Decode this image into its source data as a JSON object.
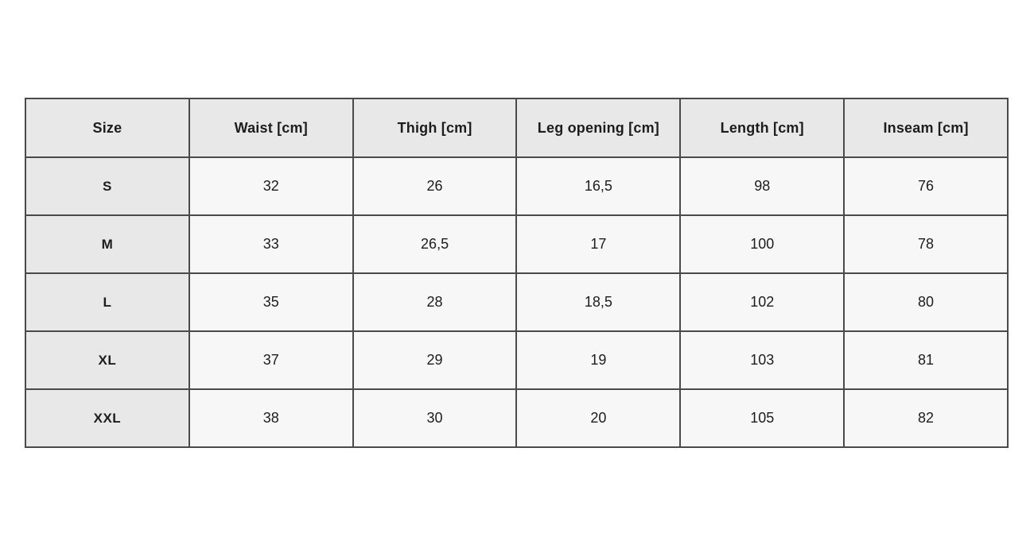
{
  "colors": {
    "page_bg": "#ffffff",
    "header_bg": "#e8e8e8",
    "cell_bg": "#f7f7f7",
    "border_inner": "#4a4a4a",
    "border_outer": "#1c1c1c",
    "text": "#1d1d1d"
  },
  "table": {
    "headers": [
      "Size",
      "Waist [cm]",
      "Thigh [cm]",
      "Leg opening [cm]",
      "Length [cm]",
      "Inseam [cm]"
    ],
    "rows": [
      {
        "cells": [
          "S",
          "32",
          "26",
          "16,5",
          "98",
          "76"
        ]
      },
      {
        "cells": [
          "M",
          "33",
          "26,5",
          "17",
          "100",
          "78"
        ]
      },
      {
        "cells": [
          "L",
          "35",
          "28",
          "18,5",
          "102",
          "80"
        ]
      },
      {
        "cells": [
          "XL",
          "37",
          "29",
          "19",
          "103",
          "81"
        ]
      },
      {
        "cells": [
          "XXL",
          "38",
          "30",
          "20",
          "105",
          "82"
        ]
      }
    ]
  },
  "chart_data": {
    "type": "table",
    "title": "",
    "columns": [
      "Size",
      "Waist [cm]",
      "Thigh [cm]",
      "Leg opening [cm]",
      "Length [cm]",
      "Inseam [cm]"
    ],
    "rows": [
      [
        "S",
        32,
        26,
        16.5,
        98,
        76
      ],
      [
        "M",
        33,
        26.5,
        17,
        100,
        78
      ],
      [
        "L",
        35,
        28,
        18.5,
        102,
        80
      ],
      [
        "XL",
        37,
        29,
        19,
        103,
        81
      ],
      [
        "XXL",
        38,
        30,
        20,
        105,
        82
      ]
    ],
    "notes": "Decimal values displayed with comma separator (e.g. 16,5). Header row and Size column have gray background."
  }
}
